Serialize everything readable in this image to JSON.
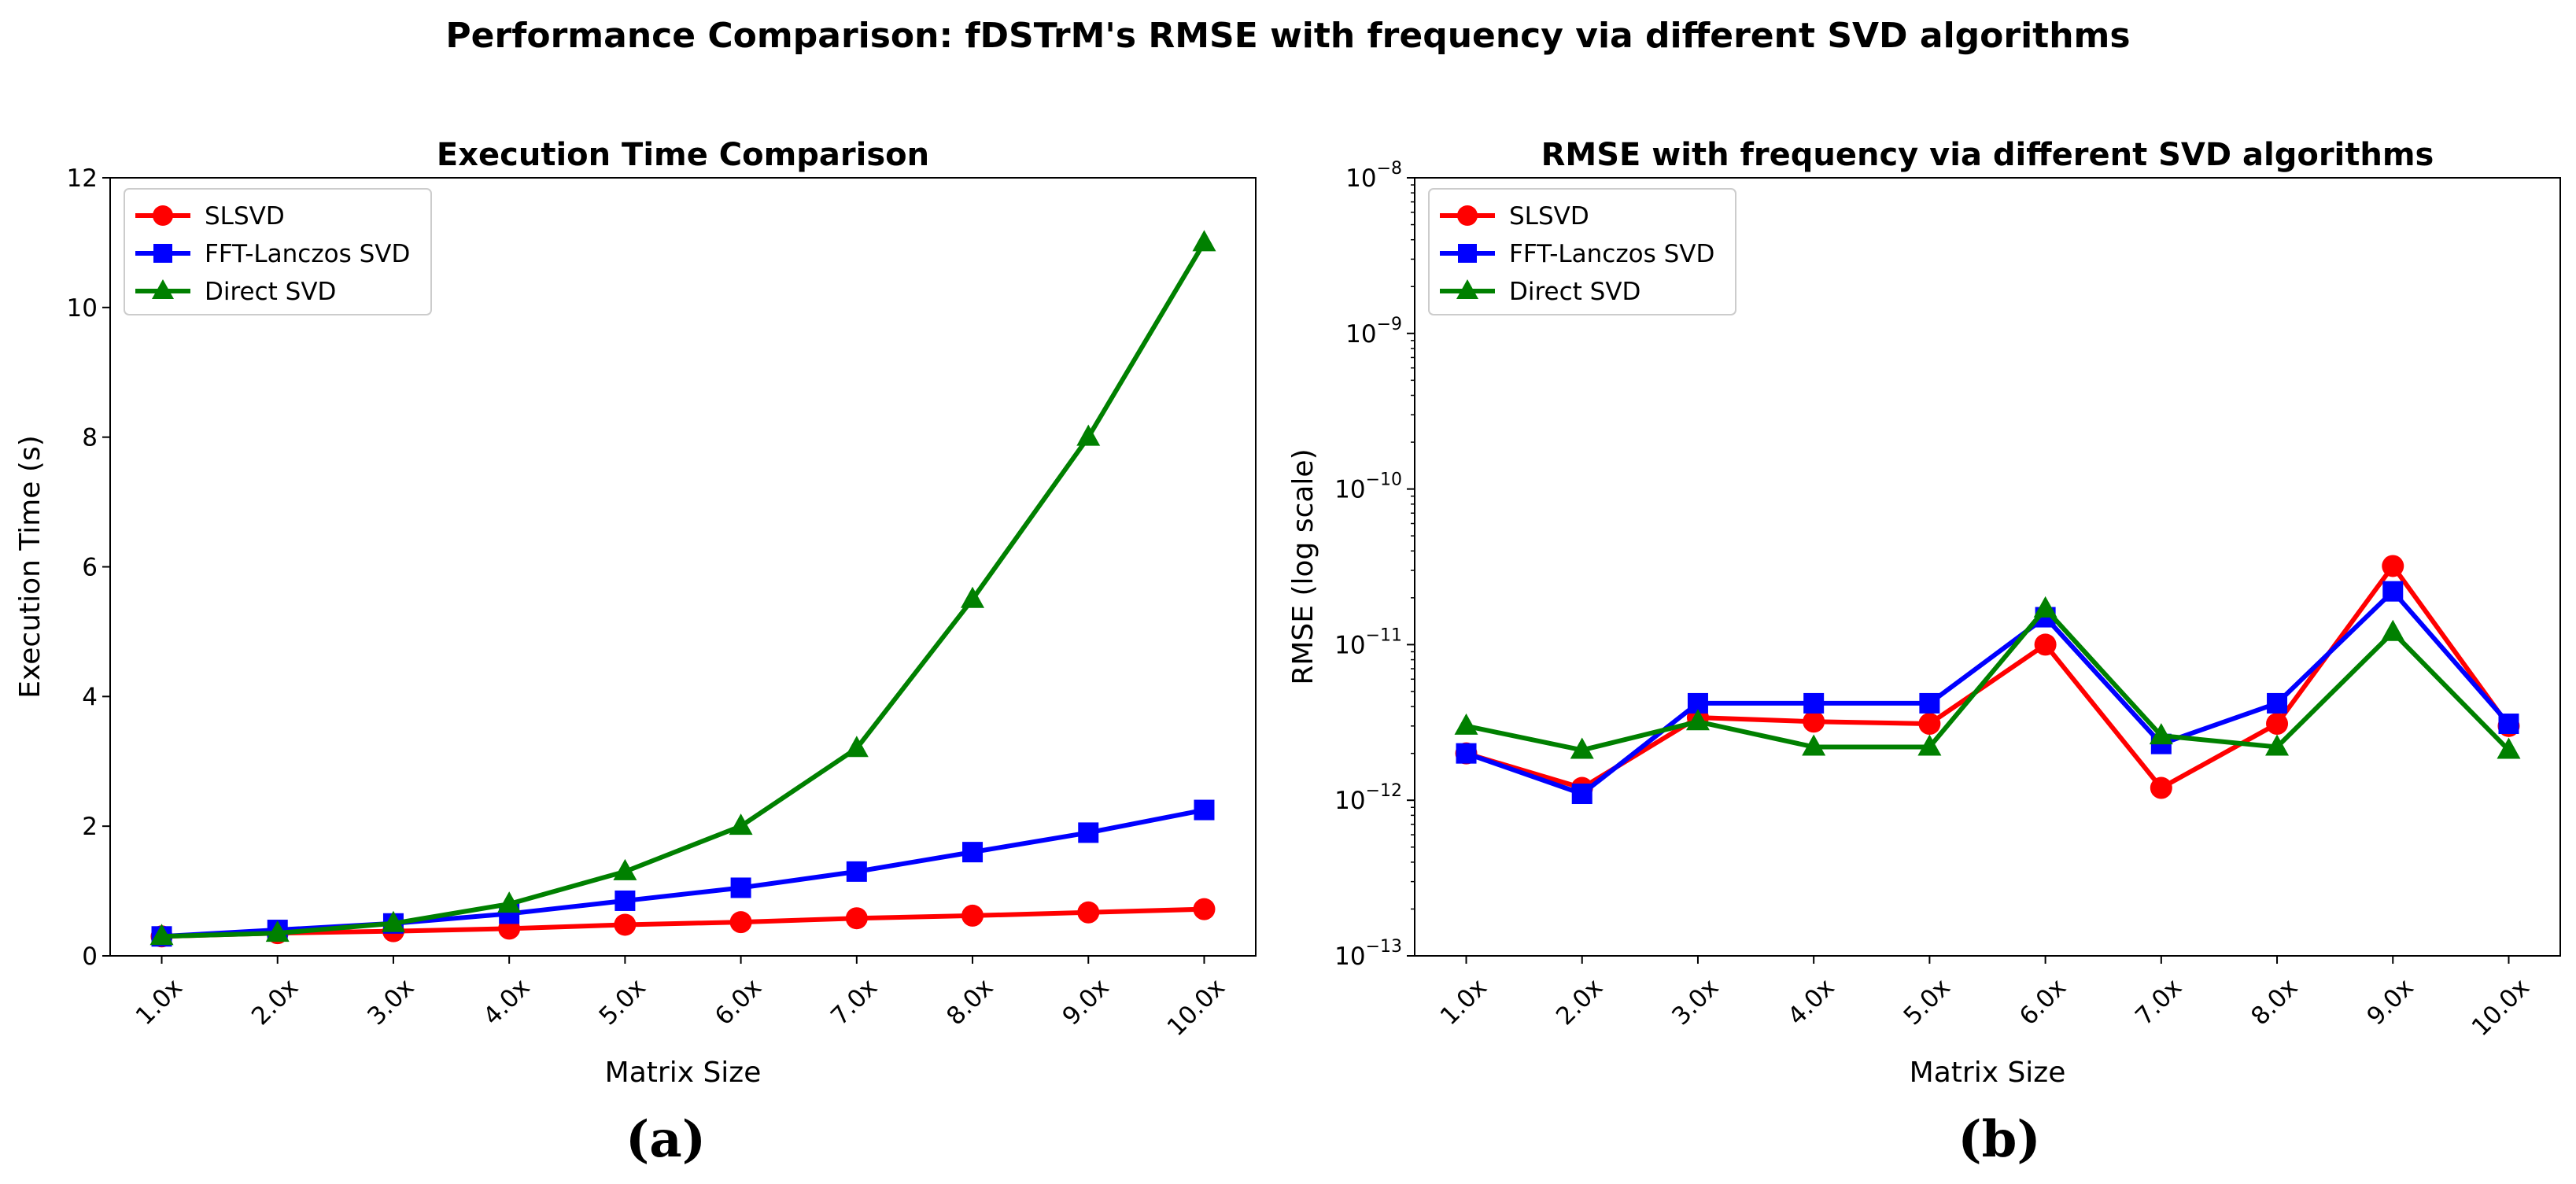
{
  "figure_title": "Performance Comparison: fDSTrM's RMSE with frequency via different SVD algorithms",
  "colors": {
    "SLSVD": "#ff0000",
    "FFT-Lanczos SVD": "#0000ff",
    "Direct SVD": "#008000"
  },
  "chart_data": [
    {
      "type": "line",
      "panel_caption": "(a)",
      "title": "Execution Time Comparison",
      "xlabel": "Matrix Size",
      "ylabel": "Execution Time (s)",
      "categories": [
        "1.0x",
        "2.0x",
        "3.0x",
        "4.0x",
        "5.0x",
        "6.0x",
        "7.0x",
        "8.0x",
        "9.0x",
        "10.0x"
      ],
      "yscale": "linear",
      "ylim": [
        0,
        12
      ],
      "yticks": [
        0,
        2,
        4,
        6,
        8,
        10,
        12
      ],
      "ytick_labels": [
        "0",
        "2",
        "4",
        "6",
        "8",
        "10",
        "12"
      ],
      "legend_position": "top-left",
      "grid": false,
      "series": [
        {
          "name": "SLSVD",
          "marker": "circle",
          "color": "#ff0000",
          "values": [
            0.3,
            0.35,
            0.38,
            0.42,
            0.48,
            0.52,
            0.58,
            0.62,
            0.67,
            0.72
          ]
        },
        {
          "name": "FFT-Lanczos SVD",
          "marker": "square",
          "color": "#0000ff",
          "values": [
            0.3,
            0.4,
            0.5,
            0.65,
            0.85,
            1.05,
            1.3,
            1.6,
            1.9,
            2.25
          ]
        },
        {
          "name": "Direct SVD",
          "marker": "triangle",
          "color": "#008000",
          "values": [
            0.3,
            0.35,
            0.5,
            0.8,
            1.3,
            2.0,
            3.2,
            5.5,
            8.0,
            11.0
          ]
        }
      ]
    },
    {
      "type": "line",
      "panel_caption": "(b)",
      "title": "RMSE with frequency via different SVD algorithms",
      "xlabel": "Matrix Size",
      "ylabel": "RMSE (log scale)",
      "categories": [
        "1.0x",
        "2.0x",
        "3.0x",
        "4.0x",
        "5.0x",
        "6.0x",
        "7.0x",
        "8.0x",
        "9.0x",
        "10.0x"
      ],
      "yscale": "log",
      "ylim": [
        1e-13,
        1e-08
      ],
      "yticks": [
        1e-13,
        1e-12,
        1e-11,
        1e-10,
        1e-09,
        1e-08
      ],
      "ytick_exponents": [
        "−13",
        "−12",
        "−11",
        "−10",
        "−9",
        "−8"
      ],
      "ytick_base": "10",
      "legend_position": "top-left",
      "grid": false,
      "series": [
        {
          "name": "SLSVD",
          "marker": "circle",
          "color": "#ff0000",
          "values": [
            2e-12,
            1.2e-12,
            3.4e-12,
            3.2e-12,
            3.1e-12,
            1e-11,
            1.2e-12,
            3.1e-12,
            3.2e-11,
            3e-12
          ]
        },
        {
          "name": "FFT-Lanczos SVD",
          "marker": "square",
          "color": "#0000ff",
          "values": [
            2e-12,
            1.1e-12,
            4.2e-12,
            4.2e-12,
            4.2e-12,
            1.5e-11,
            2.3e-12,
            4.2e-12,
            2.2e-11,
            3.1e-12
          ]
        },
        {
          "name": "Direct SVD",
          "marker": "triangle",
          "color": "#008000",
          "values": [
            3e-12,
            2.1e-12,
            3.2e-12,
            2.2e-12,
            2.2e-12,
            1.7e-11,
            2.6e-12,
            2.2e-12,
            1.2e-11,
            2.1e-12
          ]
        }
      ]
    }
  ]
}
